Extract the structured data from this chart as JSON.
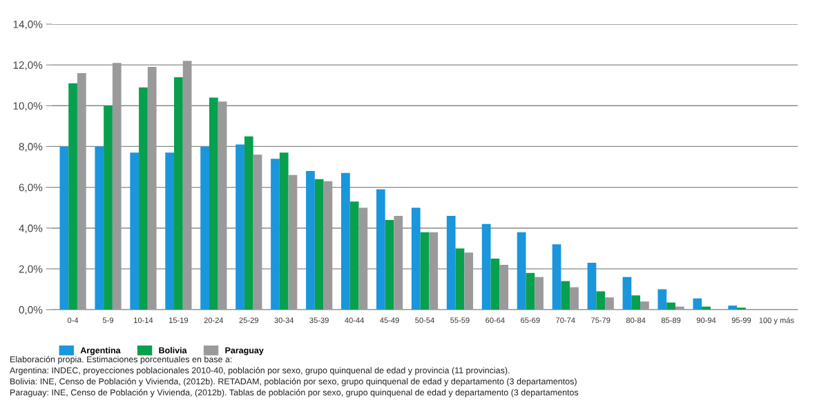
{
  "chart_data": {
    "type": "bar",
    "categories": [
      "0-4",
      "5-9",
      "10-14",
      "15-19",
      "20-24",
      "25-29",
      "30-34",
      "35-39",
      "40-44",
      "45-49",
      "50-54",
      "55-59",
      "60-64",
      "65-69",
      "70-74",
      "75-79",
      "80-84",
      "85-89",
      "90-94",
      "95-99",
      "100 y más"
    ],
    "series": [
      {
        "name": "Argentina",
        "color": "#1a96dc",
        "values": [
          8.0,
          8.0,
          7.7,
          7.7,
          8.0,
          8.1,
          7.4,
          6.8,
          6.7,
          5.9,
          5.0,
          4.6,
          4.2,
          3.8,
          3.2,
          2.3,
          1.6,
          1.0,
          0.55,
          0.2,
          null
        ]
      },
      {
        "name": "Bolivia",
        "color": "#08a04e",
        "values": [
          11.1,
          10.0,
          10.9,
          11.4,
          10.4,
          8.5,
          7.7,
          6.4,
          5.3,
          4.4,
          3.8,
          3.0,
          2.5,
          1.8,
          1.4,
          0.9,
          0.7,
          0.35,
          0.15,
          0.1,
          null
        ]
      },
      {
        "name": "Paraguay",
        "color": "#9a9a9a",
        "values": [
          11.6,
          12.1,
          11.9,
          12.2,
          10.2,
          7.6,
          6.6,
          6.3,
          5.0,
          4.6,
          3.8,
          2.8,
          2.2,
          1.6,
          1.1,
          0.6,
          0.4,
          0.15,
          null,
          null,
          null
        ]
      }
    ],
    "ylim": [
      0,
      14
    ],
    "yticks": [
      {
        "value": 0,
        "label": "0,0%"
      },
      {
        "value": 2,
        "label": "2,0%"
      },
      {
        "value": 4,
        "label": "4,0%"
      },
      {
        "value": 6,
        "label": "6,0%"
      },
      {
        "value": 8,
        "label": "8,0%"
      },
      {
        "value": 10,
        "label": "10,0%"
      },
      {
        "value": 12,
        "label": "12,0%"
      },
      {
        "value": 14,
        "label": "14,0%"
      }
    ],
    "grid": "y",
    "legend": "bottom left",
    "annotations": [
      "Elaboración propia. Estimaciones porcentuales en base a:",
      "Argentina: INDEC, proyecciones poblacionales 2010-40, población por sexo, grupo quinquenal de edad y provincia (11 provincias).",
      "Bolivia: INE, Censo de Población y Vivienda, (2012b). RETADAM, población por sexo, grupo quinquenal de edad y departamento (3 departamentos)",
      "Paraguay: INE, Censo de Población y Vivienda, (2012b). Tablas de población por sexo, grupo quinquenal de edad y departamento (3 departamentos"
    ]
  }
}
